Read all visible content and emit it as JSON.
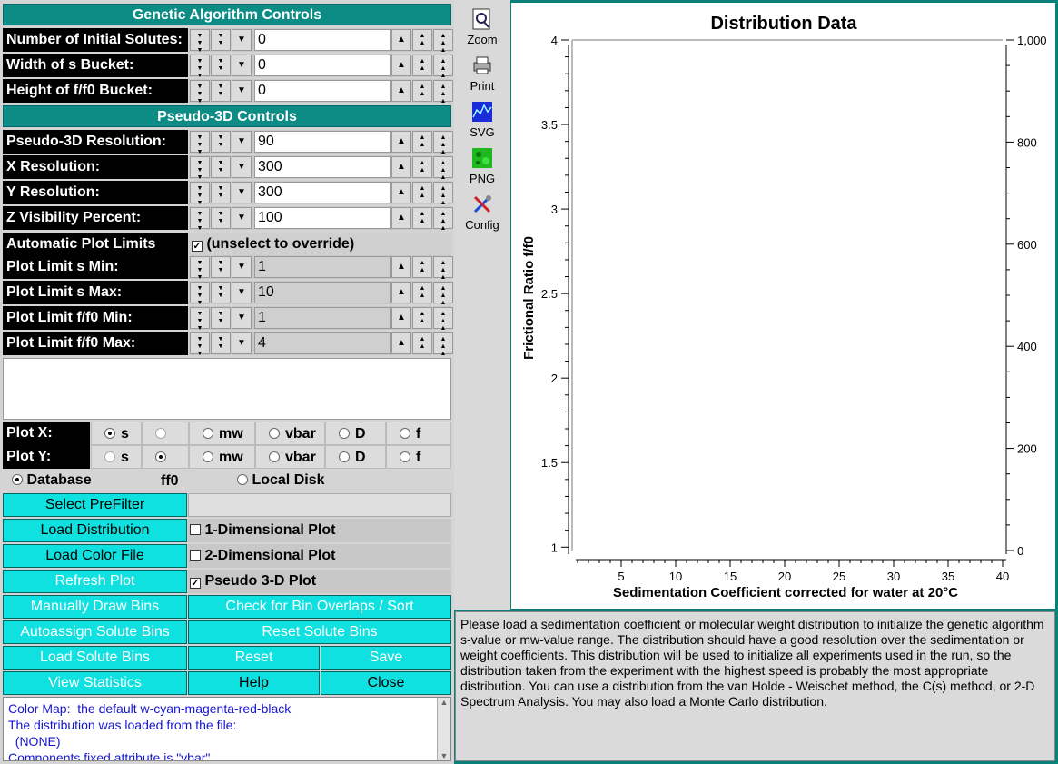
{
  "ga_controls": {
    "title": "Genetic Algorithm Controls",
    "rows": [
      {
        "label": "Number of Initial Solutes:",
        "value": "0"
      },
      {
        "label": "Width of s Bucket:",
        "value": "0"
      },
      {
        "label": "Height of f/f0 Bucket:",
        "value": "0"
      }
    ]
  },
  "p3d_controls": {
    "title": "Pseudo-3D Controls",
    "rows": [
      {
        "label": "Pseudo-3D Resolution:",
        "value": "90"
      },
      {
        "label": "X Resolution:",
        "value": "300"
      },
      {
        "label": "Y Resolution:",
        "value": "300"
      },
      {
        "label": "Z Visibility Percent:",
        "value": "100"
      }
    ],
    "auto_limits": {
      "label": "Automatic Plot Limits",
      "checkbox": "(unselect to override)",
      "checked": true
    },
    "limit_rows": [
      {
        "label": "Plot Limit s Min:",
        "value": "1"
      },
      {
        "label": "Plot Limit s Max:",
        "value": "10"
      },
      {
        "label": "Plot Limit f/f0 Min:",
        "value": "1"
      },
      {
        "label": "Plot Limit f/f0 Max:",
        "value": "4"
      }
    ]
  },
  "plot_x": {
    "label": "Plot X:",
    "options": [
      "s",
      "ff0",
      "mw",
      "vbar",
      "D",
      "f"
    ],
    "selected": "s"
  },
  "plot_y": {
    "label": "Plot Y:",
    "options": [
      "s",
      "ff0",
      "mw",
      "vbar",
      "D",
      "f"
    ],
    "selected": "ff0"
  },
  "source": {
    "database": "Database",
    "local": "Local Disk",
    "selected": "database"
  },
  "buttons": {
    "select_prefilter": "Select PreFilter",
    "load_distribution": "Load Distribution",
    "load_color_file": "Load Color File",
    "refresh_plot": "Refresh Plot",
    "manually_draw_bins": "Manually Draw Bins",
    "check_overlaps": "Check for Bin Overlaps / Sort",
    "autoassign": "Autoassign Solute Bins",
    "reset_bins": "Reset Solute Bins",
    "load_bins": "Load Solute Bins",
    "reset": "Reset",
    "save": "Save",
    "view_stats": "View Statistics",
    "help": "Help",
    "close": "Close"
  },
  "plot_options": {
    "one_d": {
      "label": "1-Dimensional Plot",
      "checked": false
    },
    "two_d": {
      "label": "2-Dimensional Plot",
      "checked": false
    },
    "p3d": {
      "label": "Pseudo 3-D Plot",
      "checked": true
    }
  },
  "log_lines": [
    "Color Map:  the default w-cyan-magenta-red-black",
    "The distribution was loaded from the file:",
    "  (NONE)",
    "Components fixed attribute is \"vbar\""
  ],
  "toolbar": [
    {
      "label": "Zoom",
      "icon": "zoom-icon"
    },
    {
      "label": "Print",
      "icon": "print-icon"
    },
    {
      "label": "SVG",
      "icon": "svg-icon"
    },
    {
      "label": "PNG",
      "icon": "png-icon"
    },
    {
      "label": "Config",
      "icon": "config-icon"
    }
  ],
  "message": "Please load a sedimentation coefficient or molecular weight distribution to initialize the genetic algorithm s-value or mw-value range. The distribution should have a good resolution over the sedimentation or weight coefficients. This distribution will be  used to initialize all experiments used in the run, so the distribution taken from the experiment with the highest speed is probably the most appropriate distribution. You can use a distribution from the van Holde - Weischet method, the C(s) method, or 2-D Spectrum Analysis. You may also load a Monte Carlo distribution.",
  "chart_data": {
    "type": "scatter",
    "title": "Distribution Data",
    "xlabel": "Sedimentation Coefficient corrected for water at 20°C",
    "ylabel": "Frictional Ratio f/f0",
    "xlim": [
      0.5,
      40
    ],
    "ylim": [
      0.98,
      4
    ],
    "y2lim": [
      0,
      1000
    ],
    "x_ticks": [
      "5",
      "10",
      "15",
      "20",
      "25",
      "30",
      "35",
      "40"
    ],
    "y_ticks": [
      "1",
      "1.5",
      "2",
      "2.5",
      "3",
      "3.5",
      "4"
    ],
    "y2_ticks": [
      "0",
      "200",
      "400",
      "600",
      "800",
      "1,000"
    ],
    "series": []
  }
}
